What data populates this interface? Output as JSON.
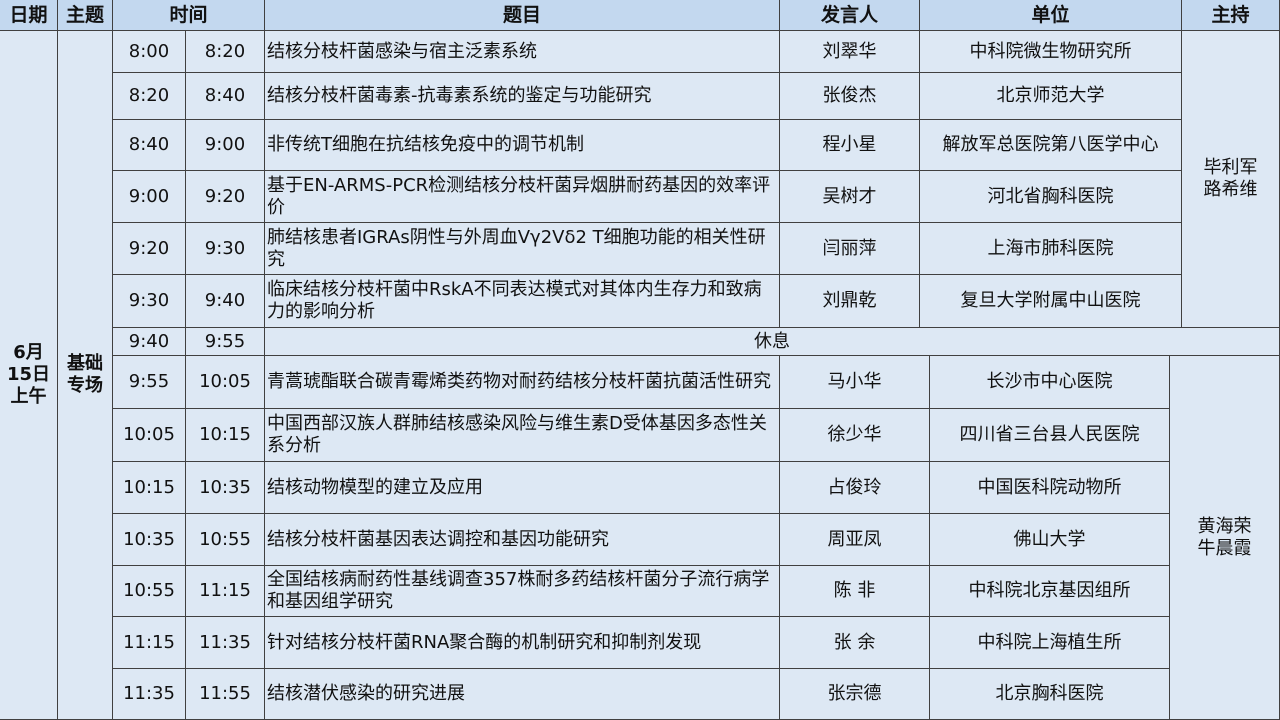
{
  "header": {
    "date": "日期",
    "theme": "主题",
    "time": "时间",
    "title": "题目",
    "speaker": "发言人",
    "unit": "单位",
    "host": "主持"
  },
  "date": "6月\n15日\n上午",
  "theme": "基础\n专场",
  "break_label": "休息",
  "hosts": [
    "毕利军\n路希维",
    "黄海荣\n牛晨霞"
  ],
  "rows": [
    {
      "start": "8:00",
      "end": "8:20",
      "title": "结核分枝杆菌感染与宿主泛素系统",
      "speaker": "刘翠华",
      "unit": "中科院微生物研究所"
    },
    {
      "start": "8:20",
      "end": "8:40",
      "title": "结核分枝杆菌毒素-抗毒素系统的鉴定与功能研究",
      "speaker": "张俊杰",
      "unit": "北京师范大学"
    },
    {
      "start": "8:40",
      "end": "9:00",
      "title": "非传统T细胞在抗结核免疫中的调节机制",
      "speaker": "程小星",
      "unit": "解放军总医院第八医学中心"
    },
    {
      "start": "9:00",
      "end": "9:20",
      "title": "基于EN-ARMS-PCR检测结核分枝杆菌异烟肼耐药基因的效率评价",
      "speaker": "吴树才",
      "unit": "河北省胸科医院"
    },
    {
      "start": "9:20",
      "end": "9:30",
      "title": "肺结核患者IGRAs阴性与外周血Vγ2Vδ2  T细胞功能的相关性研究",
      "speaker": "闫丽萍",
      "unit": "上海市肺科医院"
    },
    {
      "start": "9:30",
      "end": "9:40",
      "title": "临床结核分枝杆菌中RskA不同表达模式对其体内生存力和致病力的影响分析",
      "speaker": "刘鼎乾",
      "unit": "复旦大学附属中山医院"
    },
    {
      "start": "9:40",
      "end": "9:55",
      "break": true
    },
    {
      "start": "9:55",
      "end": "10:05",
      "title": "青蒿琥酯联合碳青霉烯类药物对耐药结核分枝杆菌抗菌活性研究",
      "speaker": "马小华",
      "unit": "长沙市中心医院"
    },
    {
      "start": "10:05",
      "end": "10:15",
      "title": "中国西部汉族人群肺结核感染风险与维生素D受体基因多态性关系分析",
      "speaker": "徐少华",
      "unit": "四川省三台县人民医院"
    },
    {
      "start": "10:15",
      "end": "10:35",
      "title": "结核动物模型的建立及应用",
      "speaker": "占俊玲",
      "unit": "中国医科院动物所"
    },
    {
      "start": "10:35",
      "end": "10:55",
      "title": "结核分枝杆菌基因表达调控和基因功能研究",
      "speaker": "周亚凤",
      "unit": "佛山大学"
    },
    {
      "start": "10:55",
      "end": "11:15",
      "title": "全国结核病耐药性基线调查357株耐多药结核杆菌分子流行病学和基因组学研究",
      "speaker": "陈  非",
      "unit": "中科院北京基因组所"
    },
    {
      "start": "11:15",
      "end": "11:35",
      "title": "针对结核分枝杆菌RNA聚合酶的机制研究和抑制剂发现",
      "speaker": "张  余",
      "unit": "中科院上海植生所"
    },
    {
      "start": "11:35",
      "end": "11:55",
      "title": "结核潜伏感染的研究进展",
      "speaker": "张宗德",
      "unit": "北京胸科医院"
    }
  ]
}
